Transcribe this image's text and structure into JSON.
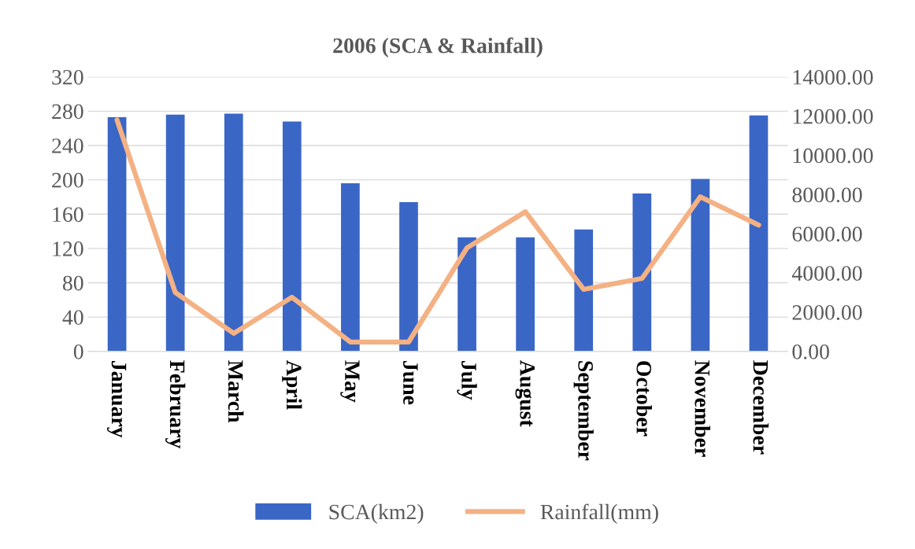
{
  "chart_data": {
    "type": "bar",
    "title": "2006 (SCA & Rainfall)",
    "categories": [
      "January",
      "February",
      "March",
      "April",
      "May",
      "June",
      "July",
      "August",
      "September",
      "October",
      "November",
      "December"
    ],
    "series": [
      {
        "name": "SCA(km2)",
        "color": "#3a66c6",
        "values": [
          273,
          276,
          277,
          268,
          196,
          174,
          133,
          133,
          142,
          184,
          201,
          275
        ]
      },
      {
        "name": "Rainfall(mm)",
        "type": "line",
        "axis": "y2",
        "color": "#f4b183",
        "values": [
          11800,
          3000,
          920,
          2760,
          480,
          480,
          5280,
          7120,
          3160,
          3720,
          7880,
          6440
        ]
      }
    ],
    "ylim": [
      0,
      320
    ],
    "yticks": [
      0,
      40,
      80,
      120,
      160,
      200,
      240,
      280,
      320
    ],
    "y2lim": [
      0,
      14000
    ],
    "y2ticks": [
      {
        "value": 0,
        "label": "0.00"
      },
      {
        "value": 2000,
        "label": "2000.00"
      },
      {
        "value": 4000,
        "label": "4000.00"
      },
      {
        "value": 6000,
        "label": "6000.00"
      },
      {
        "value": 8000,
        "label": "8000.00"
      },
      {
        "value": 10000,
        "label": "10000.00"
      },
      {
        "value": 12000,
        "label": "12000.00"
      },
      {
        "value": 14000,
        "label": "14000.00"
      }
    ],
    "grid": "y",
    "legend": "bottom",
    "marker": "none",
    "line_style": "solid"
  }
}
